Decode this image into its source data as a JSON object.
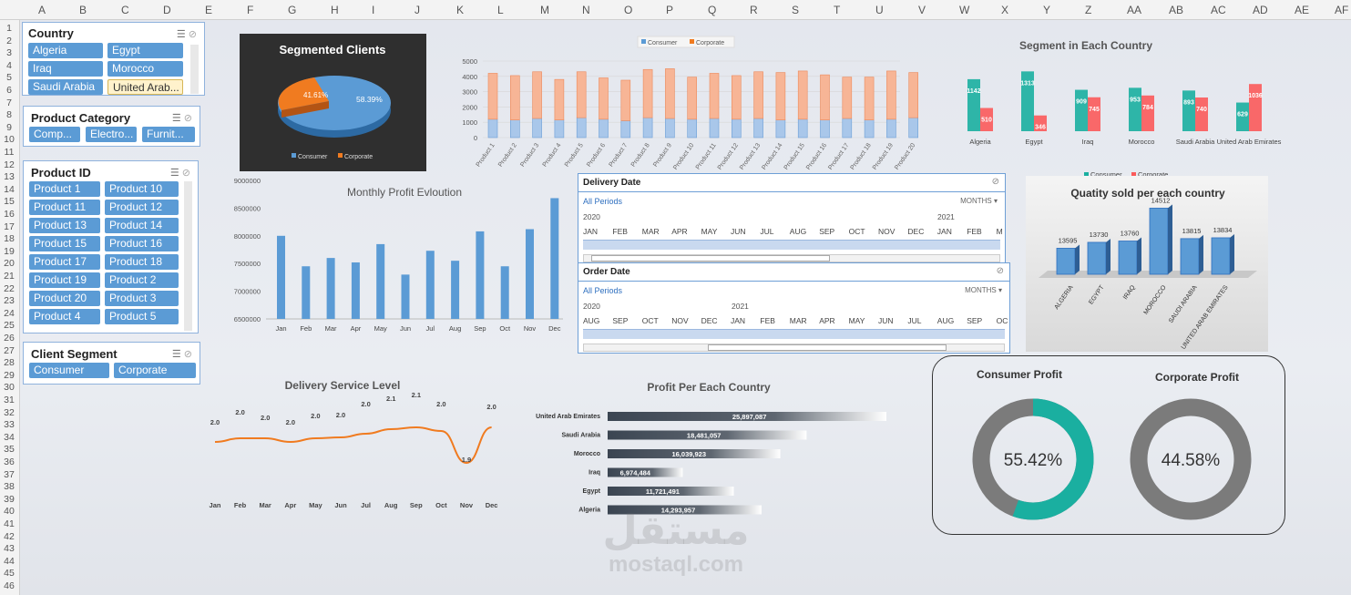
{
  "sheet": {
    "columns": [
      "A",
      "B",
      "C",
      "D",
      "E",
      "F",
      "G",
      "H",
      "I",
      "J",
      "K",
      "L",
      "M",
      "N",
      "O",
      "P",
      "Q",
      "R",
      "S",
      "T",
      "U",
      "V",
      "W",
      "X",
      "Y",
      "Z",
      "AA",
      "AB",
      "AC",
      "AD",
      "AE",
      "AF"
    ],
    "rows": [
      "1",
      "2",
      "3",
      "4",
      "5",
      "6",
      "7",
      "8",
      "9",
      "10",
      "11",
      "12",
      "13",
      "14",
      "15",
      "16",
      "17",
      "18",
      "19",
      "20",
      "21",
      "22",
      "23",
      "24",
      "25",
      "26",
      "27",
      "28",
      "29",
      "30",
      "31",
      "32",
      "33",
      "34",
      "35",
      "36",
      "37",
      "38",
      "39",
      "40",
      "41",
      "42",
      "43",
      "44",
      "45",
      "46"
    ]
  },
  "slicers": {
    "country": {
      "title": "Country",
      "items": [
        "Algeria",
        "Egypt",
        "Iraq",
        "Morocco",
        "Saudi Arabia",
        "United Arab..."
      ]
    },
    "category": {
      "title": "Product Category",
      "items": [
        "Comp...",
        "Electro...",
        "Furnit..."
      ]
    },
    "product": {
      "title": "Product ID",
      "items": [
        "Product 1",
        "Product 10",
        "Product 11",
        "Product 12",
        "Product 13",
        "Product 14",
        "Product 15",
        "Product 16",
        "Product 17",
        "Product 18",
        "Product 19",
        "Product 2",
        "Product 20",
        "Product 3",
        "Product 4",
        "Product 5"
      ]
    },
    "segment": {
      "title": "Client Segment",
      "items": [
        "Consumer",
        "Corporate"
      ]
    }
  },
  "colors": {
    "consumer": "#5b9bd5",
    "corporate": "#f4a27a",
    "teal": "#1aafa0",
    "red": "#fb5a5a",
    "gray": "#7b7b7b",
    "orange": "#f07b20",
    "dark": "#3b4552"
  },
  "pie": {
    "title": "Segmented Clients",
    "labels": [
      "Consumer",
      "Corporate"
    ],
    "values": [
      "58.39%",
      "41.61%"
    ]
  },
  "product_chart": {
    "legend": [
      "Consumer",
      "Corporate"
    ],
    "yticks": [
      "0",
      "1000",
      "2000",
      "3000",
      "4000",
      "5000"
    ],
    "categories": [
      "Product 1",
      "Product 2",
      "Product 3",
      "Product 4",
      "Product 5",
      "Product 6",
      "Product 7",
      "Product 8",
      "Product 9",
      "Product 10",
      "Product 11",
      "Product 12",
      "Product 13",
      "Product 14",
      "Product 15",
      "Product 16",
      "Product 17",
      "Product 18",
      "Product 19",
      "Product 20"
    ]
  },
  "segment_country": {
    "title": "Segment in Each Country",
    "countries": [
      "Algeria",
      "Egypt",
      "Iraq",
      "Morocco",
      "Saudi Arabia",
      "United Arab Emirates"
    ],
    "consumer": [
      "1142",
      "1313",
      "909",
      "953",
      "893",
      "629"
    ],
    "corporate": [
      "510",
      "346",
      "745",
      "784",
      "740",
      "1036"
    ],
    "legend": [
      "Consumer",
      "Corporate"
    ]
  },
  "monthly": {
    "title": "Monthly Profit Evloution",
    "yticks": [
      "6500000",
      "7000000",
      "7500000",
      "8000000",
      "8500000",
      "9000000"
    ],
    "months": [
      "Jan",
      "Feb",
      "Mar",
      "Apr",
      "May",
      "Jun",
      "Jul",
      "Aug",
      "Sep",
      "Oct",
      "Nov",
      "Dec"
    ]
  },
  "timeline_delivery": {
    "title": "Delivery Date",
    "periods": "All Periods",
    "unit": "MONTHS",
    "years": [
      "2020",
      "2021"
    ],
    "months": [
      "JAN",
      "FEB",
      "MAR",
      "APR",
      "MAY",
      "JUN",
      "JUL",
      "AUG",
      "SEP",
      "OCT",
      "NOV",
      "DEC",
      "JAN",
      "FEB",
      "M"
    ]
  },
  "timeline_order": {
    "title": "Order Date",
    "periods": "All Periods",
    "unit": "MONTHS",
    "years": [
      "2020",
      "2021"
    ],
    "months": [
      "AUG",
      "SEP",
      "OCT",
      "NOV",
      "DEC",
      "JAN",
      "FEB",
      "MAR",
      "APR",
      "MAY",
      "JUN",
      "JUL",
      "AUG",
      "SEP",
      "OC"
    ]
  },
  "quantity": {
    "title": "Quatity sold per each country",
    "countries": [
      "ALGERIA",
      "EGYPT",
      "IRAQ",
      "MOROCCO",
      "SAUDI ARABIA",
      "UNITED ARAB EMIRATES"
    ],
    "values": [
      "13595",
      "13730",
      "13760",
      "14512",
      "13815",
      "13834"
    ]
  },
  "delivery": {
    "title": "Delivery Service Level",
    "months": [
      "Jan",
      "Feb",
      "Mar",
      "Apr",
      "May",
      "Jun",
      "Jul",
      "Aug",
      "Sep",
      "Oct",
      "Nov",
      "Dec"
    ],
    "labels": [
      "2.0",
      "2.0",
      "2.0",
      "2.0",
      "2.0",
      "2.0",
      "2.0",
      "2.1",
      "2.1",
      "2.0",
      "1.9",
      "2.0"
    ]
  },
  "profit_country": {
    "title": "Profit Per Each Country",
    "countries": [
      "United Arab Emirates",
      "Saudi Arabia",
      "Morocco",
      "Iraq",
      "Egypt",
      "Algeria"
    ],
    "values": [
      "25,897,087",
      "18,481,057",
      "16,039,923",
      "6,974,484",
      "11,721,491",
      "14,293,957"
    ]
  },
  "donuts": {
    "consumer_title": "Consumer Profit",
    "consumer_value": "55.42%",
    "corporate_title": "Corporate Profit",
    "corporate_value": "44.58%"
  },
  "watermark": {
    "arabic": "مستقل",
    "latin": "mostaql.com"
  },
  "chart_data": [
    {
      "type": "pie",
      "title": "Segmented Clients",
      "categories": [
        "Consumer",
        "Corporate"
      ],
      "values": [
        58.39,
        41.61
      ]
    },
    {
      "type": "bar",
      "stacked": true,
      "categories": [
        "Product 1",
        "Product 2",
        "Product 3",
        "Product 4",
        "Product 5",
        "Product 6",
        "Product 7",
        "Product 8",
        "Product 9",
        "Product 10",
        "Product 11",
        "Product 12",
        "Product 13",
        "Product 14",
        "Product 15",
        "Product 16",
        "Product 17",
        "Product 18",
        "Product 19",
        "Product 20"
      ],
      "series": [
        {
          "name": "Consumer",
          "values": [
            1200,
            1150,
            1250,
            1150,
            1300,
            1200,
            1100,
            1300,
            1250,
            1200,
            1250,
            1200,
            1250,
            1150,
            1200,
            1150,
            1250,
            1150,
            1200,
            1300
          ]
        },
        {
          "name": "Corporate",
          "values": [
            3000,
            2900,
            3050,
            2650,
            3000,
            2700,
            2650,
            3150,
            3250,
            2750,
            2950,
            2850,
            3050,
            3100,
            3150,
            2950,
            2700,
            2800,
            3150,
            2950
          ]
        }
      ],
      "ylim": [
        0,
        5000
      ],
      "legend": "top"
    },
    {
      "type": "bar",
      "title": "Segment in Each Country",
      "categories": [
        "Algeria",
        "Egypt",
        "Iraq",
        "Morocco",
        "Saudi Arabia",
        "United Arab Emirates"
      ],
      "series": [
        {
          "name": "Consumer",
          "values": [
            1142,
            1313,
            909,
            953,
            893,
            629
          ]
        },
        {
          "name": "Corporate",
          "values": [
            510,
            346,
            745,
            784,
            740,
            1036
          ]
        }
      ],
      "legend": "bottom"
    },
    {
      "type": "bar",
      "title": "Monthly Profit Evloution",
      "categories": [
        "Jan",
        "Feb",
        "Mar",
        "Apr",
        "May",
        "Jun",
        "Jul",
        "Aug",
        "Sep",
        "Oct",
        "Nov",
        "Dec"
      ],
      "values": [
        8000000,
        7450000,
        7600000,
        7520000,
        7850000,
        7300000,
        7730000,
        7550000,
        8080000,
        7450000,
        8120000,
        8680000
      ],
      "ylim": [
        6500000,
        9000000
      ]
    },
    {
      "type": "bar",
      "title": "Quatity sold per each country",
      "categories": [
        "ALGERIA",
        "EGYPT",
        "IRAQ",
        "MOROCCO",
        "SAUDI ARABIA",
        "UNITED ARAB EMIRATES"
      ],
      "values": [
        13595,
        13730,
        13760,
        14512,
        13815,
        13834
      ]
    },
    {
      "type": "line",
      "title": "Delivery Service Level",
      "categories": [
        "Jan",
        "Feb",
        "Mar",
        "Apr",
        "May",
        "Jun",
        "Jul",
        "Aug",
        "Sep",
        "Oct",
        "Nov",
        "Dec"
      ],
      "values": [
        2.0,
        2.0,
        2.0,
        2.0,
        2.0,
        2.0,
        2.0,
        2.1,
        2.1,
        2.0,
        1.9,
        2.0
      ]
    },
    {
      "type": "bar",
      "orientation": "horizontal",
      "title": "Profit Per Each Country",
      "categories": [
        "United Arab Emirates",
        "Saudi Arabia",
        "Morocco",
        "Iraq",
        "Egypt",
        "Algeria"
      ],
      "values": [
        25897087,
        18481057,
        16039923,
        6974484,
        11721491,
        14293957
      ]
    },
    {
      "type": "pie",
      "title": "Consumer Profit",
      "categories": [
        "Consumer"
      ],
      "values": [
        55.42
      ]
    },
    {
      "type": "pie",
      "title": "Corporate Profit",
      "categories": [
        "Corporate"
      ],
      "values": [
        44.58
      ]
    }
  ]
}
